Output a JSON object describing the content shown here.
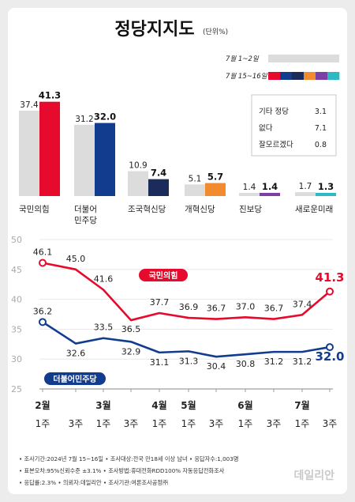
{
  "header": {
    "title": "정당지지도",
    "unit": "(단위%)"
  },
  "legend": {
    "prev_label": "7월 1~2일",
    "curr_label": "7월 15~16일",
    "prev_color": "#dcdcdc",
    "curr_swatches": [
      "#e60b2d",
      "#123d8f",
      "#1b2b5a",
      "#f28b2e",
      "#7b3fa6",
      "#2bbac4"
    ]
  },
  "others_box": {
    "items": [
      {
        "label": "기타 정당",
        "value": "3.1"
      },
      {
        "label": "없다",
        "value": "7.1"
      },
      {
        "label": "잘모르겠다",
        "value": "0.8"
      }
    ]
  },
  "chart_data": [
    {
      "type": "bar",
      "categories": [
        "국민의힘",
        "더불어\n민주당",
        "조국혁신당",
        "개혁신당",
        "진보당",
        "새로운미래"
      ],
      "series": [
        {
          "name": "7월 1~2일",
          "values": [
            37.4,
            31.2,
            10.9,
            5.1,
            1.4,
            1.7
          ]
        },
        {
          "name": "7월 15~16일",
          "values": [
            41.3,
            32.0,
            7.4,
            5.7,
            1.4,
            1.3
          ]
        }
      ],
      "colors_prev": "#dcdcdc",
      "colors_curr": [
        "#e60b2d",
        "#123d8f",
        "#1b2b5a",
        "#f28b2e",
        "#7b3fa6",
        "#2bbac4"
      ],
      "ylim": [
        0,
        45
      ]
    },
    {
      "type": "line",
      "x": [
        "2월 1주",
        "3주",
        "3월 1주",
        "3주",
        "4월 1주",
        "5월 1주",
        "3주",
        "6월 1주",
        "3주",
        "7월 1주",
        "3주"
      ],
      "x_month_labels": [
        "2월",
        "",
        "3월",
        "",
        "4월",
        "5월",
        "",
        "6월",
        "",
        "7월",
        ""
      ],
      "x_week_labels": [
        "1주",
        "3주",
        "1주",
        "3주",
        "1주",
        "1주",
        "3주",
        "1주",
        "3주",
        "1주",
        "3주"
      ],
      "series": [
        {
          "name": "국민의힘",
          "color": "#e60b2d",
          "values": [
            46.1,
            45.0,
            41.6,
            36.5,
            37.7,
            36.9,
            36.7,
            37.0,
            36.7,
            37.4,
            41.3
          ]
        },
        {
          "name": "더불어민주당",
          "color": "#123d8f",
          "values": [
            36.2,
            32.6,
            33.5,
            32.9,
            31.1,
            31.3,
            30.4,
            30.8,
            31.2,
            31.2,
            32.0
          ]
        }
      ],
      "yticks": [
        25,
        30,
        35,
        40,
        45,
        50
      ],
      "ylim": [
        25,
        50
      ],
      "grid": true
    }
  ],
  "footnotes": [
    "• 조사기간:2024년 7월 15~16일  • 조사대상:전국 만18세 이상 남녀  • 응답자수:1,003명",
    "• 표본오차:95%신뢰수준 ±3.1%  • 조사방법:휴대전화RDD100% 자동응답전화조사",
    "• 응답률:2.3%  • 의뢰자:데일리안  • 조사기관:여론조사공정㈜"
  ],
  "watermark": "데일리안"
}
